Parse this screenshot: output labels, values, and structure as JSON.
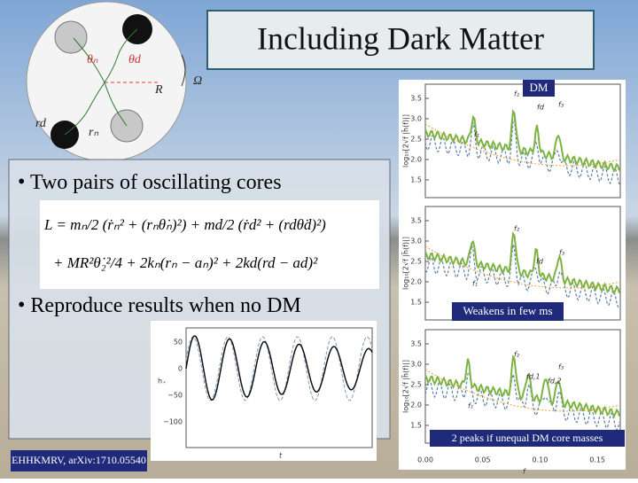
{
  "title": "Including Dark Matter",
  "bullets": [
    "Two pairs of oscillating cores",
    "Reproduce results when no DM"
  ],
  "equation": {
    "line1": "L = mₙ/2 (ṙₙ² + (rₙθ̇ₙ)²) + md/2 (ṙd² + (rdθ̇d)²)",
    "line2": "+ MR²θ̇₂²/4 + 2kₙ(rₙ − aₙ)² + 2kd(rd − ad)²"
  },
  "diagram": {
    "labels": [
      "θₙ",
      "θd",
      "R",
      "Ω",
      "rd",
      "rₙ"
    ]
  },
  "spectra": {
    "panels": [
      {
        "yticks": [
          "3.5",
          "3.0",
          "2.5",
          "2.0",
          "1.5"
        ],
        "ylabel": "log₁₀[2√f |h̃(f)|]",
        "peaks": [
          "f₂",
          "fd",
          "f₃",
          "f₁"
        ]
      },
      {
        "yticks": [
          "3.5",
          "3.0",
          "2.5",
          "2.0",
          "1.5"
        ],
        "ylabel": "log₁₀[2√f |h̃(f)|]",
        "peaks": [
          "f₂",
          "fd",
          "f₃",
          "f₁"
        ]
      },
      {
        "yticks": [
          "3.5",
          "3.0",
          "2.5",
          "2.0",
          "1.5"
        ],
        "ylabel": "log₁₀[2√f |h̃(f)|]",
        "peaks": [
          "f₂",
          "fd,1",
          "fd,2",
          "f₃",
          "f₁"
        ]
      }
    ],
    "xticks": [
      "0.00",
      "0.05",
      "0.10",
      "0.15"
    ],
    "xlabel": "f"
  },
  "waveform": {
    "yticks": [
      "50",
      "0",
      "−50",
      "−100"
    ],
    "xlabel": "t",
    "ylabel": "h₊"
  },
  "notes": {
    "dm": "DM",
    "weakens": "Weakens in few ms",
    "two_peaks": "2 peaks if unequal DM core masses",
    "citation": "EHHKMRV, arXiv:1710.05540"
  }
}
